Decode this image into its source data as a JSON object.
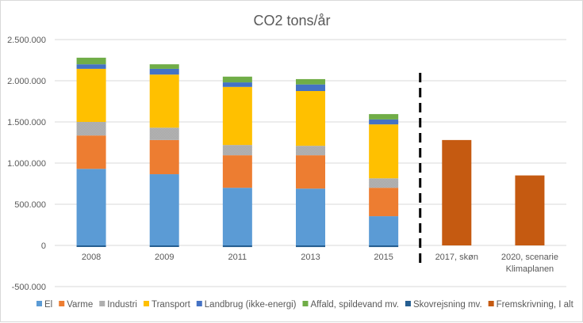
{
  "chart_data": {
    "type": "bar",
    "stacked": true,
    "title": "CO2 tons/år",
    "xlabel": "",
    "ylabel": "",
    "ylim": [
      -500000,
      2500000
    ],
    "y_ticks": [
      -500000,
      0,
      500000,
      1000000,
      1500000,
      2000000,
      2500000
    ],
    "y_tick_labels": [
      "-500.000",
      "0",
      "500.000",
      "1.000.000",
      "1.500.000",
      "2.000.000",
      "2.500.000"
    ],
    "grid": true,
    "legend_position": "bottom",
    "categories": [
      "2008",
      "2009",
      "2011",
      "2013",
      "2015",
      "2017, skøn",
      "2020, scenarie Klimaplanen"
    ],
    "category_lines": [
      [
        "2008"
      ],
      [
        "2009"
      ],
      [
        "2011"
      ],
      [
        "2013"
      ],
      [
        "2015"
      ],
      [
        "2017, skøn"
      ],
      [
        "2020, scenarie",
        "Klimaplanen"
      ]
    ],
    "separator": {
      "style": "dashed",
      "between": [
        "2015",
        "2017, skøn"
      ],
      "color": "#000000"
    },
    "series": [
      {
        "name": "El",
        "color": "#5B9BD5",
        "values": [
          930000,
          865000,
          700000,
          690000,
          355000,
          null,
          null
        ]
      },
      {
        "name": "Varme",
        "color": "#ED7D31",
        "values": [
          405000,
          415000,
          395000,
          405000,
          345000,
          null,
          null
        ]
      },
      {
        "name": "Industri",
        "color": "#A5A5A5",
        "pattern": "checker",
        "values": [
          165000,
          150000,
          125000,
          115000,
          115000,
          null,
          null
        ]
      },
      {
        "name": "Transport",
        "color": "#FFC000",
        "values": [
          645000,
          645000,
          705000,
          665000,
          655000,
          null,
          null
        ]
      },
      {
        "name": "Landbrug (ikke-energi)",
        "color": "#4472C4",
        "values": [
          55000,
          70000,
          55000,
          80000,
          60000,
          null,
          null
        ]
      },
      {
        "name": "Affald, spildevand mv.",
        "color": "#70AD47",
        "values": [
          80000,
          55000,
          70000,
          65000,
          65000,
          null,
          null
        ]
      },
      {
        "name": "Skovrejsning mv.",
        "color": "#255E91",
        "values": [
          -10000,
          -10000,
          -20000,
          -20000,
          -20000,
          null,
          null
        ]
      },
      {
        "name": "Fremskrivning, I alt",
        "color": "#C55A11",
        "values": [
          null,
          null,
          null,
          null,
          null,
          1280000,
          850000
        ]
      }
    ]
  }
}
